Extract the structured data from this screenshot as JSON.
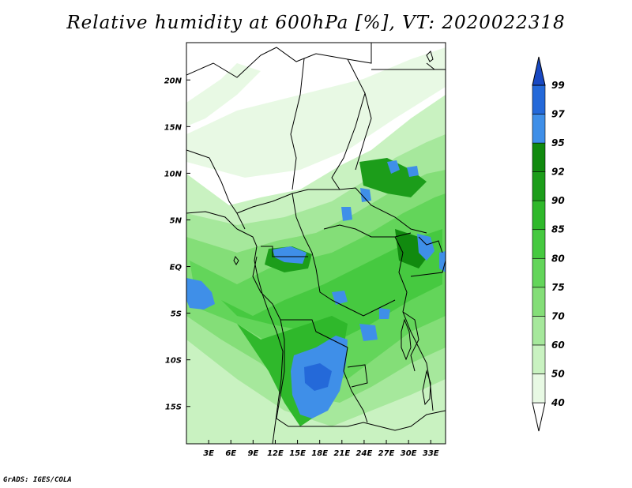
{
  "title": "Relative humidity at 600hPa [%], VT: 2020022318",
  "credit": "GrADS: IGES/COLA",
  "map": {
    "lon_range": [
      0,
      35
    ],
    "lat_range": [
      -19,
      24
    ],
    "lon_ticks": [
      {
        "value": 3,
        "label": "3E"
      },
      {
        "value": 6,
        "label": "6E"
      },
      {
        "value": 9,
        "label": "9E"
      },
      {
        "value": 12,
        "label": "12E"
      },
      {
        "value": 15,
        "label": "15E"
      },
      {
        "value": 18,
        "label": "18E"
      },
      {
        "value": 21,
        "label": "21E"
      },
      {
        "value": 24,
        "label": "24E"
      },
      {
        "value": 27,
        "label": "27E"
      },
      {
        "value": 30,
        "label": "30E"
      },
      {
        "value": 33,
        "label": "33E"
      }
    ],
    "lat_ticks": [
      {
        "value": 20,
        "label": "20N"
      },
      {
        "value": 15,
        "label": "15N"
      },
      {
        "value": 10,
        "label": "10N"
      },
      {
        "value": 5,
        "label": "5N"
      },
      {
        "value": 0,
        "label": "EQ"
      },
      {
        "value": -5,
        "label": "5S"
      },
      {
        "value": -10,
        "label": "10S"
      },
      {
        "value": -15,
        "label": "15S"
      }
    ]
  },
  "colorbar": {
    "levels": [
      "40",
      "50",
      "60",
      "70",
      "75",
      "80",
      "85",
      "90",
      "92",
      "95",
      "97",
      "99"
    ],
    "colors": [
      "#ffffff",
      "#e8f9e4",
      "#c9f2c1",
      "#a6e89c",
      "#84de78",
      "#63d55a",
      "#46c940",
      "#2fb82b",
      "#1c9d1a",
      "#118a0f",
      "#3f8fe8",
      "#2469d9",
      "#1848c2"
    ]
  }
}
